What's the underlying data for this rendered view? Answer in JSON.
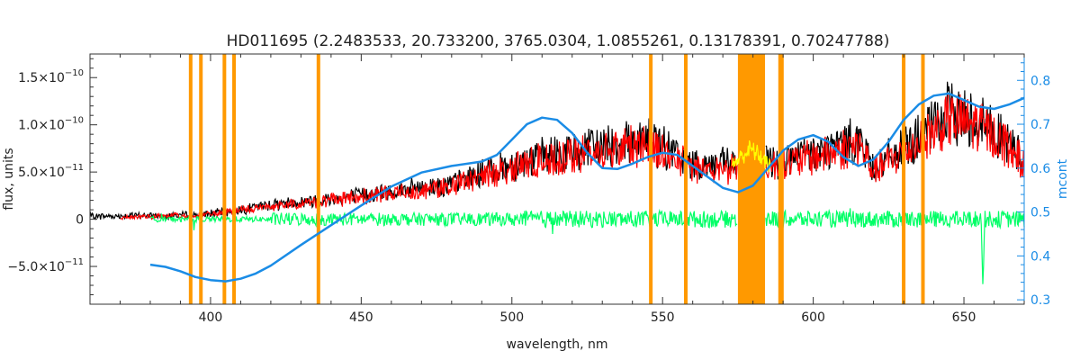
{
  "chart_data": {
    "type": "line",
    "title": "HD011695   (2.2483533, 20.733200, 3765.0304, 1.0855261, 0.13178391, 0.70247788)",
    "xlabel": "wavelength, nm",
    "ylabel_left": "flux, units",
    "ylabel_right": "mcont",
    "xlim": [
      360,
      670
    ],
    "ylim_left": [
      -9e-11,
      1.75e-10
    ],
    "ylim_right": [
      0.29,
      0.86
    ],
    "x_ticks": [
      400,
      450,
      500,
      550,
      600,
      650
    ],
    "y_left_ticks": [
      {
        "value": 1.5e-10,
        "mant": "1.5×10",
        "exp": "−10"
      },
      {
        "value": 1e-10,
        "mant": "1.0×10",
        "exp": "−10"
      },
      {
        "value": 5e-11,
        "mant": "5.0×10",
        "exp": "−11"
      },
      {
        "value": 0,
        "mant": "0",
        "exp": ""
      },
      {
        "value": -5e-11,
        "mant": "−5.0×10",
        "exp": "−11"
      }
    ],
    "y_right_ticks": [
      {
        "value": 0.3,
        "label": "0.3"
      },
      {
        "value": 0.4,
        "label": "0.4"
      },
      {
        "value": 0.5,
        "label": "0.5"
      },
      {
        "value": 0.6,
        "label": "0.6"
      },
      {
        "value": 0.7,
        "label": "0.7"
      },
      {
        "value": 0.8,
        "label": "0.8"
      }
    ],
    "masked_lines_nm": [
      393.4,
      396.8,
      404.6,
      407.8,
      435.8,
      546.1,
      557.7,
      589.0,
      589.6,
      630.0,
      636.4
    ],
    "masked_band_nm": [
      575,
      584
    ],
    "series": [
      {
        "color": "#000000",
        "role": "observed flux",
        "envelope": [
          [
            360,
            4e-12
          ],
          [
            380,
            5e-12
          ],
          [
            395,
            6e-12
          ],
          [
            405,
            1e-11
          ],
          [
            420,
            2e-11
          ],
          [
            440,
            2.8e-11
          ],
          [
            460,
            3.8e-11
          ],
          [
            480,
            4.8e-11
          ],
          [
            495,
            7e-11
          ],
          [
            510,
            8.5e-11
          ],
          [
            525,
            9.5e-11
          ],
          [
            535,
            1.05e-10
          ],
          [
            545,
            1.1e-10
          ],
          [
            560,
            7.5e-11
          ],
          [
            575,
            7.5e-11
          ],
          [
            590,
            8e-11
          ],
          [
            605,
            9.5e-11
          ],
          [
            615,
            1.1e-10
          ],
          [
            620,
            7e-11
          ],
          [
            635,
            1.1e-10
          ],
          [
            645,
            1.45e-10
          ],
          [
            655,
            1.35e-10
          ],
          [
            665,
            1.05e-10
          ],
          [
            670,
            8e-11
          ]
        ]
      },
      {
        "color": "#ff0000",
        "role": "model flux",
        "envelope": [
          [
            370,
            2e-12
          ],
          [
            380,
            4e-12
          ],
          [
            395,
            5e-12
          ],
          [
            405,
            9e-12
          ],
          [
            420,
            1.8e-11
          ],
          [
            440,
            2.6e-11
          ],
          [
            460,
            3.5e-11
          ],
          [
            480,
            4.5e-11
          ],
          [
            495,
            6.5e-11
          ],
          [
            510,
            8e-11
          ],
          [
            525,
            9e-11
          ],
          [
            535,
            9.8e-11
          ],
          [
            545,
            1.02e-10
          ],
          [
            560,
            7e-11
          ],
          [
            575,
            7e-11
          ],
          [
            590,
            7.5e-11
          ],
          [
            605,
            9e-11
          ],
          [
            615,
            1.02e-10
          ],
          [
            620,
            6.5e-11
          ],
          [
            635,
            1.05e-10
          ],
          [
            645,
            1.35e-10
          ],
          [
            655,
            1.28e-10
          ],
          [
            665,
            1e-10
          ],
          [
            670,
            7.5e-11
          ]
        ]
      },
      {
        "color": "#ffff00",
        "role": "masked flux",
        "envelope": [
          [
            573,
            6.5e-11
          ],
          [
            576,
            7.5e-11
          ],
          [
            579,
            8.5e-11
          ],
          [
            582,
            7.8e-11
          ],
          [
            586,
            6.2e-11
          ]
        ]
      },
      {
        "color": "#00ff66",
        "role": "residuals"
      },
      {
        "color": "#1a8ce6",
        "role": "mcont",
        "axis": "right",
        "x": [
          380,
          385,
          390,
          395,
          400,
          405,
          410,
          415,
          420,
          430,
          440,
          450,
          460,
          470,
          480,
          490,
          495,
          500,
          505,
          510,
          515,
          520,
          525,
          530,
          535,
          540,
          545,
          550,
          555,
          560,
          565,
          570,
          575,
          580,
          585,
          590,
          595,
          600,
          605,
          610,
          615,
          620,
          625,
          630,
          635,
          640,
          645,
          650,
          655,
          660,
          665,
          670
        ],
        "values": [
          0.38,
          0.375,
          0.365,
          0.352,
          0.345,
          0.342,
          0.348,
          0.36,
          0.378,
          0.425,
          0.47,
          0.515,
          0.558,
          0.59,
          0.605,
          0.615,
          0.63,
          0.665,
          0.7,
          0.715,
          0.71,
          0.68,
          0.635,
          0.6,
          0.598,
          0.61,
          0.625,
          0.635,
          0.63,
          0.605,
          0.58,
          0.555,
          0.545,
          0.56,
          0.6,
          0.64,
          0.665,
          0.675,
          0.66,
          0.625,
          0.605,
          0.62,
          0.66,
          0.71,
          0.745,
          0.765,
          0.77,
          0.755,
          0.74,
          0.735,
          0.745,
          0.76
        ]
      }
    ]
  }
}
